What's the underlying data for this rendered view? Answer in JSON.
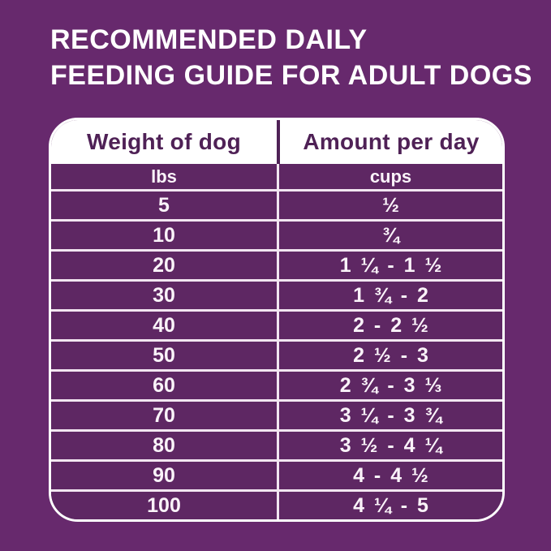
{
  "title": {
    "line1": "RECOMMENDED DAILY",
    "line2": "FEEDING GUIDE FOR ADULT DOGS"
  },
  "chart_data": {
    "type": "table",
    "title": "Recommended daily feeding guide for adult dogs",
    "columns": [
      {
        "label": "Weight of dog",
        "unit": "lbs"
      },
      {
        "label": "Amount per day",
        "unit": "cups"
      }
    ],
    "rows": [
      {
        "weight": "5",
        "amount": "½"
      },
      {
        "weight": "10",
        "amount": "¾"
      },
      {
        "weight": "20",
        "amount": "1 ¼  -  1 ½"
      },
      {
        "weight": "30",
        "amount": "1 ¾  -  2"
      },
      {
        "weight": "40",
        "amount": "2  -  2 ½"
      },
      {
        "weight": "50",
        "amount": "2 ½  -  3"
      },
      {
        "weight": "60",
        "amount": "2 ¾  -  3 ⅓"
      },
      {
        "weight": "70",
        "amount": "3 ¼  -  3 ¾"
      },
      {
        "weight": "80",
        "amount": "3 ½  -  4 ¼"
      },
      {
        "weight": "90",
        "amount": "4  -  4 ½"
      },
      {
        "weight": "100",
        "amount": "4 ¼  -  5"
      }
    ]
  },
  "colors": {
    "page_background": "#67296d",
    "row_fill": "#5e2763",
    "header_background": "#ffffff",
    "header_text": "#4f2156",
    "cell_text": "#faf3f9",
    "divider": "#f2e6f1",
    "outer_border": "#ffffff",
    "title_text": "#ffffff"
  }
}
